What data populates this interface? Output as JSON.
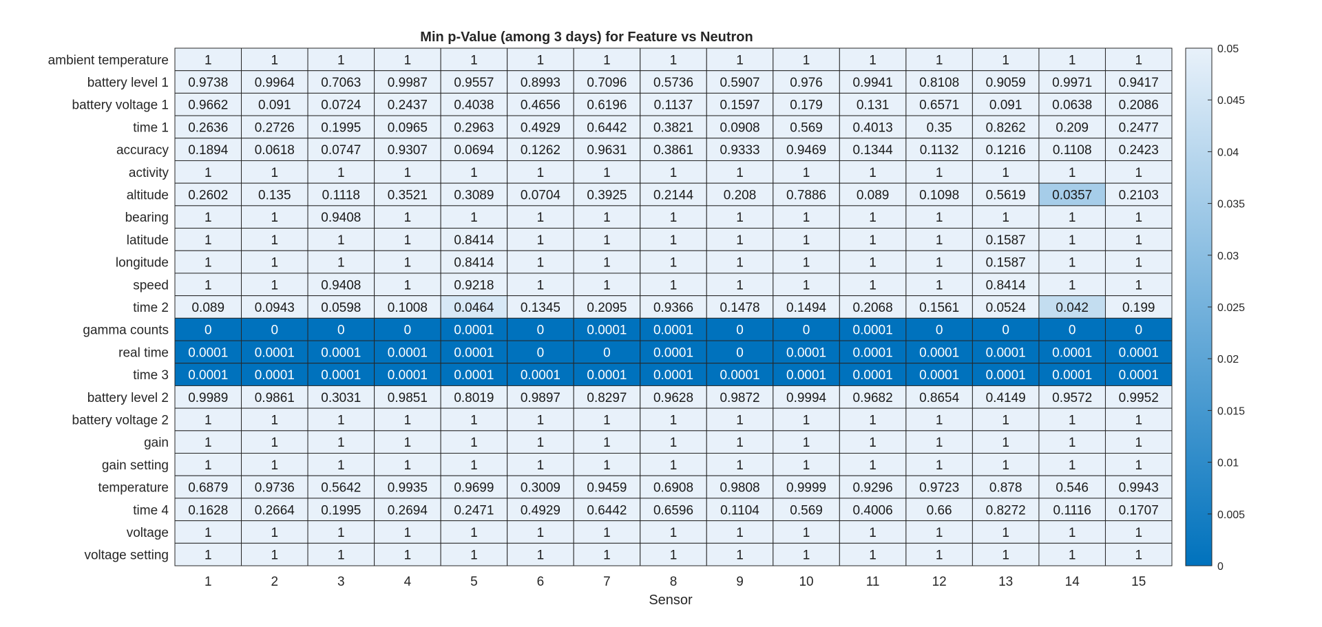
{
  "chart_data": {
    "type": "heatmap",
    "title": "Min p-Value (among 3 days) for Feature vs Neutron",
    "xlabel": "Sensor",
    "ylabel": "",
    "columns": [
      "1",
      "2",
      "3",
      "4",
      "5",
      "6",
      "7",
      "8",
      "9",
      "10",
      "11",
      "12",
      "13",
      "14",
      "15"
    ],
    "rows": [
      "ambient temperature",
      "battery level 1",
      "battery voltage 1",
      "time 1",
      "accuracy",
      "activity",
      "altitude",
      "bearing",
      "latitude",
      "longitude",
      "speed",
      "time 2",
      "gamma counts",
      "real time",
      "time 3",
      "battery level 2",
      "battery voltage 2",
      "gain",
      "gain setting",
      "temperature",
      "time 4",
      "voltage",
      "voltage setting"
    ],
    "values": [
      [
        "1",
        "1",
        "1",
        "1",
        "1",
        "1",
        "1",
        "1",
        "1",
        "1",
        "1",
        "1",
        "1",
        "1",
        "1"
      ],
      [
        "0.9738",
        "0.9964",
        "0.7063",
        "0.9987",
        "0.9557",
        "0.8993",
        "0.7096",
        "0.5736",
        "0.5907",
        "0.976",
        "0.9941",
        "0.8108",
        "0.9059",
        "0.9971",
        "0.9417"
      ],
      [
        "0.9662",
        "0.091",
        "0.0724",
        "0.2437",
        "0.4038",
        "0.4656",
        "0.6196",
        "0.1137",
        "0.1597",
        "0.179",
        "0.131",
        "0.6571",
        "0.091",
        "0.0638",
        "0.2086"
      ],
      [
        "0.2636",
        "0.2726",
        "0.1995",
        "0.0965",
        "0.2963",
        "0.4929",
        "0.6442",
        "0.3821",
        "0.0908",
        "0.569",
        "0.4013",
        "0.35",
        "0.8262",
        "0.209",
        "0.2477"
      ],
      [
        "0.1894",
        "0.0618",
        "0.0747",
        "0.9307",
        "0.0694",
        "0.1262",
        "0.9631",
        "0.3861",
        "0.9333",
        "0.9469",
        "0.1344",
        "0.1132",
        "0.1216",
        "0.1108",
        "0.2423"
      ],
      [
        "1",
        "1",
        "1",
        "1",
        "1",
        "1",
        "1",
        "1",
        "1",
        "1",
        "1",
        "1",
        "1",
        "1",
        "1"
      ],
      [
        "0.2602",
        "0.135",
        "0.1118",
        "0.3521",
        "0.3089",
        "0.0704",
        "0.3925",
        "0.2144",
        "0.208",
        "0.7886",
        "0.089",
        "0.1098",
        "0.5619",
        "0.0357",
        "0.2103"
      ],
      [
        "1",
        "1",
        "0.9408",
        "1",
        "1",
        "1",
        "1",
        "1",
        "1",
        "1",
        "1",
        "1",
        "1",
        "1",
        "1"
      ],
      [
        "1",
        "1",
        "1",
        "1",
        "0.8414",
        "1",
        "1",
        "1",
        "1",
        "1",
        "1",
        "1",
        "0.1587",
        "1",
        "1"
      ],
      [
        "1",
        "1",
        "1",
        "1",
        "0.8414",
        "1",
        "1",
        "1",
        "1",
        "1",
        "1",
        "1",
        "0.1587",
        "1",
        "1"
      ],
      [
        "1",
        "1",
        "0.9408",
        "1",
        "0.9218",
        "1",
        "1",
        "1",
        "1",
        "1",
        "1",
        "1",
        "0.8414",
        "1",
        "1"
      ],
      [
        "0.089",
        "0.0943",
        "0.0598",
        "0.1008",
        "0.0464",
        "0.1345",
        "0.2095",
        "0.9366",
        "0.1478",
        "0.1494",
        "0.2068",
        "0.1561",
        "0.0524",
        "0.042",
        "0.199"
      ],
      [
        "0",
        "0",
        "0",
        "0",
        "0.0001",
        "0",
        "0.0001",
        "0.0001",
        "0",
        "0",
        "0.0001",
        "0",
        "0",
        "0",
        "0"
      ],
      [
        "0.0001",
        "0.0001",
        "0.0001",
        "0.0001",
        "0.0001",
        "0",
        "0",
        "0.0001",
        "0",
        "0.0001",
        "0.0001",
        "0.0001",
        "0.0001",
        "0.0001",
        "0.0001"
      ],
      [
        "0.0001",
        "0.0001",
        "0.0001",
        "0.0001",
        "0.0001",
        "0.0001",
        "0.0001",
        "0.0001",
        "0.0001",
        "0.0001",
        "0.0001",
        "0.0001",
        "0.0001",
        "0.0001",
        "0.0001"
      ],
      [
        "0.9989",
        "0.9861",
        "0.3031",
        "0.9851",
        "0.8019",
        "0.9897",
        "0.8297",
        "0.9628",
        "0.9872",
        "0.9994",
        "0.9682",
        "0.8654",
        "0.4149",
        "0.9572",
        "0.9952"
      ],
      [
        "1",
        "1",
        "1",
        "1",
        "1",
        "1",
        "1",
        "1",
        "1",
        "1",
        "1",
        "1",
        "1",
        "1",
        "1"
      ],
      [
        "1",
        "1",
        "1",
        "1",
        "1",
        "1",
        "1",
        "1",
        "1",
        "1",
        "1",
        "1",
        "1",
        "1",
        "1"
      ],
      [
        "1",
        "1",
        "1",
        "1",
        "1",
        "1",
        "1",
        "1",
        "1",
        "1",
        "1",
        "1",
        "1",
        "1",
        "1"
      ],
      [
        "0.6879",
        "0.9736",
        "0.5642",
        "0.9935",
        "0.9699",
        "0.3009",
        "0.9459",
        "0.6908",
        "0.9808",
        "0.9999",
        "0.9296",
        "0.9723",
        "0.878",
        "0.546",
        "0.9943"
      ],
      [
        "0.1628",
        "0.2664",
        "0.1995",
        "0.2694",
        "0.2471",
        "0.4929",
        "0.6442",
        "0.6596",
        "0.1104",
        "0.569",
        "0.4006",
        "0.66",
        "0.8272",
        "0.1116",
        "0.1707"
      ],
      [
        "1",
        "1",
        "1",
        "1",
        "1",
        "1",
        "1",
        "1",
        "1",
        "1",
        "1",
        "1",
        "1",
        "1",
        "1"
      ],
      [
        "1",
        "1",
        "1",
        "1",
        "1",
        "1",
        "1",
        "1",
        "1",
        "1",
        "1",
        "1",
        "1",
        "1",
        "1"
      ]
    ],
    "colorbar": {
      "range": [
        0,
        0.05
      ],
      "ticks": [
        "0",
        "0.005",
        "0.01",
        "0.015",
        "0.02",
        "0.025",
        "0.03",
        "0.035",
        "0.04",
        "0.045",
        "0.05"
      ],
      "color_low": "#0072bd",
      "color_high": "#e8f1fa"
    },
    "grid": "on",
    "colorbar_placement": "right"
  }
}
